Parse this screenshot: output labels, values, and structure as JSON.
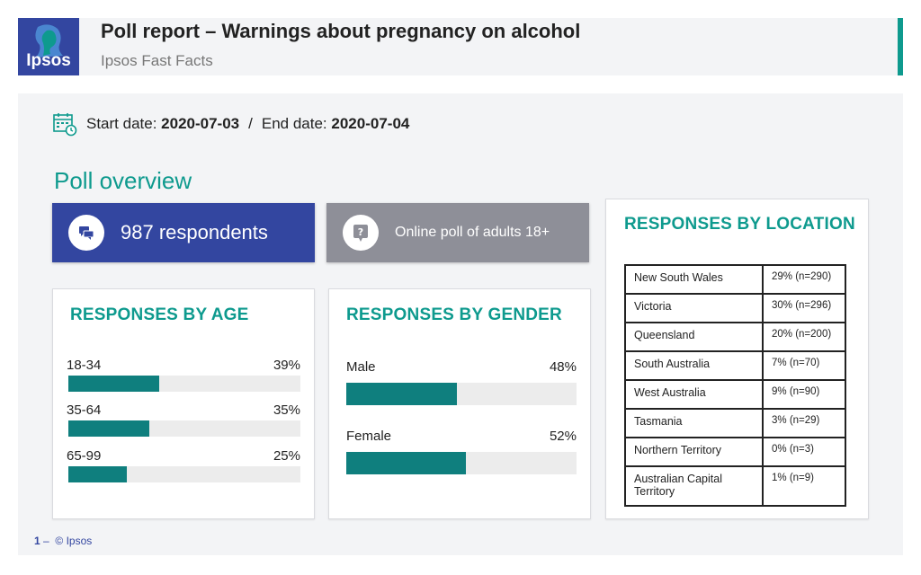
{
  "header": {
    "logo_text": "Ipsos",
    "title": "Poll report – Warnings about pregnancy on alcohol",
    "subtitle": "Ipsos Fast Facts"
  },
  "dates": {
    "start_label": "Start date:",
    "start_value": "2020-07-03",
    "separator": "/",
    "end_label": "End date:",
    "end_value": "2020-07-04"
  },
  "overview": {
    "title": "Poll overview",
    "respondents": "987 respondents",
    "method": "Online poll of adults 18+"
  },
  "age": {
    "title": "RESPONSES BY AGE",
    "rows": [
      {
        "label": "18-34",
        "pct": "39%",
        "value": 39
      },
      {
        "label": "35-64",
        "pct": "35%",
        "value": 35
      },
      {
        "label": "65-99",
        "pct": "25%",
        "value": 25
      }
    ]
  },
  "gender": {
    "title": "RESPONSES BY GENDER",
    "rows": [
      {
        "label": "Male",
        "pct": "48%",
        "value": 48
      },
      {
        "label": "Female",
        "pct": "52%",
        "value": 52
      }
    ]
  },
  "location": {
    "title": "RESPONSES BY LOCATION",
    "rows": [
      {
        "name": "New South Wales",
        "value": "29% (n=290)"
      },
      {
        "name": "Victoria",
        "value": "30% (n=296)"
      },
      {
        "name": "Queensland",
        "value": "20% (n=200)"
      },
      {
        "name": "South Australia",
        "value": "7% (n=70)"
      },
      {
        "name": "West Australia",
        "value": "9% (n=90)"
      },
      {
        "name": "Tasmania",
        "value": "3% (n=29)"
      },
      {
        "name": "Northern Territory",
        "value": "0% (n=3)"
      },
      {
        "name": "Australian Capital Territory",
        "value": "1% (n=9)"
      }
    ]
  },
  "footer": {
    "page_number": "1",
    "dash": "–",
    "copyright": "© Ipsos"
  },
  "colors": {
    "brand_blue": "#3346a0",
    "teal": "#0e9a8e",
    "bar_teal": "#0f7f7e",
    "grey": "#8e8f98"
  }
}
